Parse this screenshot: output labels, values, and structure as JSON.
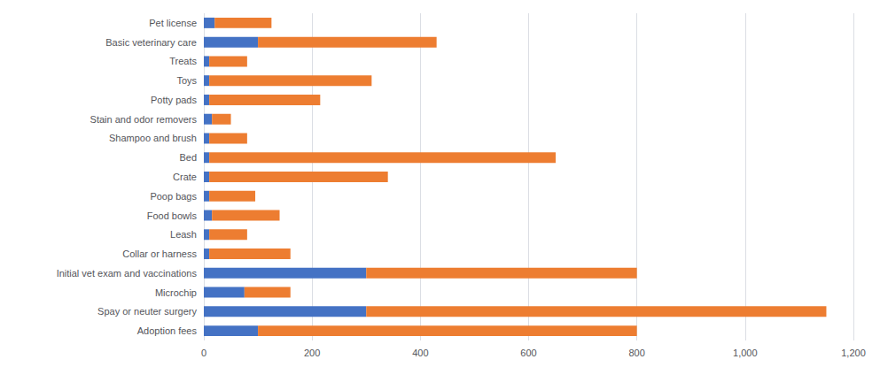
{
  "chart_data": {
    "type": "bar",
    "orientation": "horizontal",
    "stacked": true,
    "categories": [
      "Adoption fees",
      "Spay or neuter surgery",
      "Microchip",
      "Initial vet exam and vaccinations",
      "Collar or harness",
      "Leash",
      "Food bowls",
      "Poop bags",
      "Crate",
      "Bed",
      "Shampoo and brush",
      "Stain and odor removers",
      "Potty pads",
      "Toys",
      "Treats",
      "Basic veterinary care",
      "Pet license"
    ],
    "series": [
      {
        "color": "#4472C4",
        "values": [
          100,
          300,
          75,
          300,
          10,
          10,
          15,
          10,
          10,
          10,
          10,
          15,
          10,
          10,
          10,
          100,
          20
        ]
      },
      {
        "color": "#ED7D31",
        "values": [
          700,
          850,
          85,
          500,
          150,
          70,
          125,
          85,
          330,
          640,
          70,
          35,
          205,
          300,
          70,
          330,
          105
        ]
      }
    ],
    "xlim": [
      0,
      1200
    ],
    "xticks": [
      0,
      200,
      400,
      600,
      800,
      1000,
      1200
    ],
    "grid": true
  }
}
